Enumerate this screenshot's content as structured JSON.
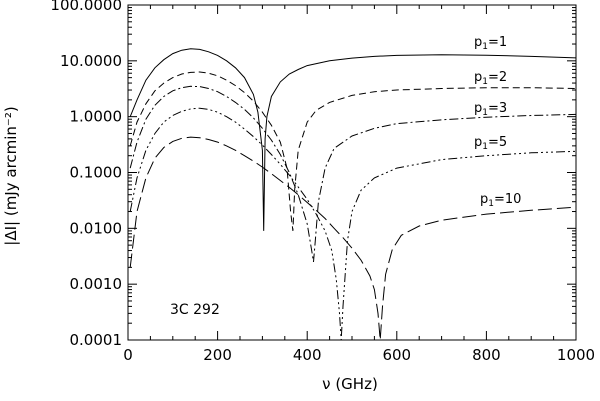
{
  "chart_data": {
    "type": "line",
    "title": "",
    "xlabel": "ν (GHz)",
    "ylabel": "|ΔI| (mJy arcmin⁻²)",
    "x_scale": "linear",
    "y_scale": "log",
    "xlim": [
      0,
      1000
    ],
    "ylim": [
      0.0001,
      100
    ],
    "grid": false,
    "annotation": "3C 292",
    "x_ticks": [
      "0",
      "200",
      "400",
      "600",
      "800",
      "1000"
    ],
    "y_ticks": [
      "0.0001",
      "0.0010",
      "0.0100",
      "0.1000",
      "1.0000",
      "10.0000",
      "100.0000"
    ],
    "series": [
      {
        "name": "p1=1",
        "label_main": "p",
        "label_sub": "1",
        "label_rest": "=1",
        "dash": "",
        "x": [
          5,
          20,
          40,
          60,
          80,
          100,
          120,
          140,
          160,
          180,
          200,
          220,
          240,
          260,
          280,
          290,
          300,
          303,
          306,
          310,
          320,
          340,
          360,
          380,
          400,
          450,
          500,
          550,
          600,
          700,
          800,
          900,
          1000
        ],
        "y": [
          1.0,
          2.0,
          4.5,
          7.5,
          10.5,
          13.5,
          15.5,
          16.5,
          16.0,
          14.5,
          12.5,
          10.0,
          7.5,
          5.0,
          2.5,
          1.2,
          0.25,
          0.009,
          0.4,
          1.0,
          2.3,
          4.2,
          5.8,
          7.0,
          8.2,
          10.0,
          11.2,
          12.0,
          12.5,
          12.8,
          12.6,
          12.0,
          11.3
        ]
      },
      {
        "name": "p1=2",
        "label_main": "p",
        "label_sub": "1",
        "label_rest": "=2",
        "dash": "7,4",
        "x": [
          5,
          20,
          40,
          60,
          80,
          100,
          120,
          140,
          160,
          180,
          200,
          220,
          240,
          260,
          280,
          300,
          320,
          340,
          355,
          363,
          368,
          372,
          380,
          400,
          420,
          450,
          500,
          550,
          600,
          700,
          800,
          900,
          1000
        ],
        "y": [
          0.3,
          0.8,
          1.7,
          2.9,
          4.0,
          5.0,
          5.8,
          6.2,
          6.3,
          6.0,
          5.4,
          4.5,
          3.6,
          2.7,
          1.9,
          1.2,
          0.7,
          0.35,
          0.12,
          0.02,
          0.009,
          0.05,
          0.25,
          0.8,
          1.3,
          1.8,
          2.4,
          2.8,
          3.0,
          3.2,
          3.3,
          3.3,
          3.2
        ]
      },
      {
        "name": "p1=3",
        "label_main": "p",
        "label_sub": "1",
        "label_rest": "=3",
        "dash": "9,3,2,3",
        "x": [
          5,
          20,
          40,
          60,
          80,
          100,
          120,
          140,
          160,
          180,
          200,
          220,
          240,
          260,
          280,
          300,
          320,
          340,
          360,
          380,
          400,
          410,
          414,
          418,
          425,
          440,
          460,
          500,
          550,
          600,
          700,
          800,
          900,
          1000
        ],
        "y": [
          0.12,
          0.35,
          0.9,
          1.6,
          2.3,
          2.9,
          3.3,
          3.5,
          3.45,
          3.2,
          2.8,
          2.3,
          1.8,
          1.35,
          0.95,
          0.62,
          0.38,
          0.21,
          0.1,
          0.04,
          0.012,
          0.004,
          0.0025,
          0.006,
          0.03,
          0.12,
          0.27,
          0.45,
          0.62,
          0.75,
          0.88,
          0.98,
          1.05,
          1.1
        ]
      },
      {
        "name": "p1=5",
        "label_main": "p",
        "label_sub": "1",
        "label_rest": "=5",
        "dash": "9,3,2,3,2,3,2,3",
        "x": [
          5,
          20,
          40,
          60,
          80,
          100,
          120,
          140,
          160,
          180,
          200,
          220,
          240,
          260,
          280,
          300,
          320,
          340,
          360,
          380,
          400,
          420,
          440,
          455,
          465,
          472,
          476,
          480,
          490,
          500,
          520,
          550,
          600,
          700,
          800,
          900,
          1000
        ],
        "y": [
          0.02,
          0.08,
          0.25,
          0.5,
          0.8,
          1.05,
          1.25,
          1.38,
          1.42,
          1.35,
          1.2,
          1.0,
          0.8,
          0.6,
          0.44,
          0.31,
          0.21,
          0.14,
          0.09,
          0.055,
          0.033,
          0.018,
          0.009,
          0.004,
          0.0012,
          0.0003,
          0.0001,
          0.0004,
          0.006,
          0.02,
          0.048,
          0.08,
          0.12,
          0.17,
          0.2,
          0.225,
          0.24
        ]
      },
      {
        "name": "p1=10",
        "label_main": "p",
        "label_sub": "1",
        "label_rest": "=10",
        "dash": "14,5",
        "x": [
          5,
          20,
          40,
          60,
          80,
          100,
          120,
          140,
          160,
          180,
          200,
          220,
          240,
          260,
          280,
          300,
          320,
          340,
          360,
          380,
          400,
          420,
          440,
          460,
          480,
          500,
          520,
          540,
          550,
          558,
          563,
          568,
          575,
          590,
          610,
          650,
          700,
          800,
          900,
          1000
        ],
        "y": [
          0.002,
          0.02,
          0.08,
          0.18,
          0.28,
          0.36,
          0.41,
          0.43,
          0.42,
          0.39,
          0.35,
          0.3,
          0.25,
          0.2,
          0.16,
          0.125,
          0.095,
          0.072,
          0.054,
          0.04,
          0.029,
          0.021,
          0.015,
          0.01,
          0.0068,
          0.0044,
          0.0027,
          0.0014,
          0.0008,
          0.0003,
          0.0001,
          0.0004,
          0.0015,
          0.0042,
          0.0075,
          0.011,
          0.014,
          0.018,
          0.021,
          0.024
        ]
      }
    ]
  }
}
